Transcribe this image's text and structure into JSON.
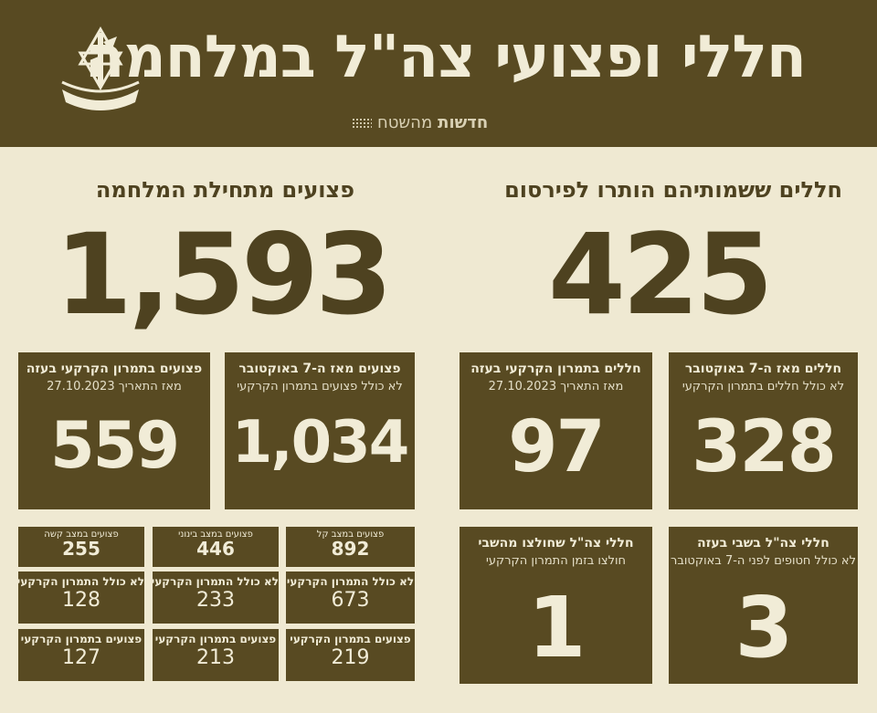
{
  "header": {
    "title": "חללי ופצועי צה\"ל במלחמה",
    "brand_bold": "חדשות",
    "brand_rest": "מהשטח",
    "logo_icon": "idf-emblem-icon"
  },
  "colors": {
    "olive": "#584a22",
    "cream": "#efe9d2",
    "dark_text": "#4e4220"
  },
  "casualties": {
    "title": "חללים ששמותיהם הותרו לפירסום",
    "total": "425",
    "since_oct7": {
      "title": "חללים מאז ה-7 באוקטובר",
      "subtitle": "לא כולל חללים בתמרון הקרקעי",
      "value": "328"
    },
    "ground_op": {
      "title": "חללים בתמרון הקרקעי בעזה",
      "subtitle": "מאז התאריך 27.10.2023",
      "value": "97"
    },
    "captivity": {
      "title": "חללי צה\"ל בשבי בעזה",
      "subtitle": "לא כולל חטופים לפני ה-7 באוקטובר",
      "value": "3"
    },
    "rescued": {
      "title": "חללי צה\"ל שחולצו מהשבי",
      "subtitle": "חולצו בזמן התמרון הקרקעי",
      "value": "1"
    }
  },
  "wounded": {
    "title": "פצועים מתחילת המלחמה",
    "total": "1,593",
    "since_oct7": {
      "title": "פצועים מאז ה-7 באוקטובר",
      "subtitle": "לא כולל פצועים בתמרון הקרקעי",
      "value": "1,034"
    },
    "ground_op": {
      "title": "פצועים בתמרון הקרקעי בעזה",
      "subtitle": "מאז התאריך 27.10.2023",
      "value": "559"
    },
    "breakdown": [
      {
        "severity": "פצועים במצב קל",
        "total": "892",
        "excl_label": "לא כולל התמרון הקרקעי",
        "excl_value": "673",
        "ground_label": "פצועים בתמרון הקרקעי",
        "ground_value": "219"
      },
      {
        "severity": "פצועים במצב בינוני",
        "total": "446",
        "excl_label": "לא כולל התמרון הקרקעי",
        "excl_value": "233",
        "ground_label": "פצועים בתמרון הקרקעי",
        "ground_value": "213"
      },
      {
        "severity": "פצועים במצב קשה",
        "total": "255",
        "excl_label": "לא כולל התמרון הקרקעי",
        "excl_value": "128",
        "ground_label": "פצועים בתמרון הקרקעי",
        "ground_value": "127"
      }
    ]
  }
}
